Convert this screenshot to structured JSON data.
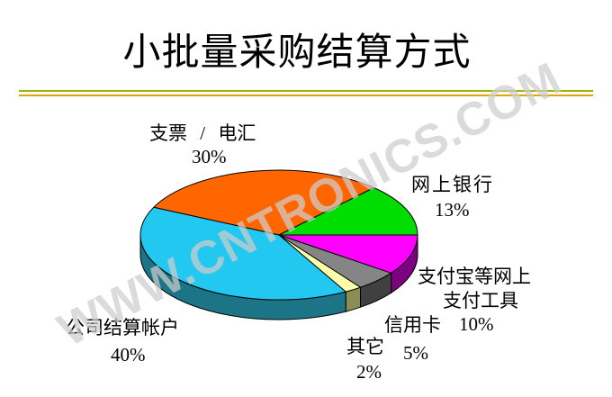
{
  "slide": {
    "title": "小批量采购结算方式"
  },
  "watermark": {
    "text": "WWW.CNTRONICS.COM",
    "color": "rgba(205,205,205,0.72)"
  },
  "divider": {
    "top_color": "#9FB300",
    "bottom_color": "#E3A400"
  },
  "chart_data": {
    "type": "pie",
    "is_3d": true,
    "title": "小批量采购结算方式",
    "legend": false,
    "units": "percent",
    "start_angle_deg": -154.8,
    "slices": [
      {
        "key": "checks",
        "name": "支票 / 电汇",
        "value": 30,
        "pct_label": "30%",
        "color": "#FF6600",
        "side_color": "#993D00"
      },
      {
        "key": "ebank",
        "name": "网上银行",
        "value": 13,
        "pct_label": "13%",
        "color": "#00DD00",
        "side_color": "#008800"
      },
      {
        "key": "alipay",
        "name": "支付宝等网上支付工具",
        "value": 10,
        "pct_label": "10%",
        "color": "#FF00FF",
        "side_color": "#7D0080"
      },
      {
        "key": "credit",
        "name": "信用卡",
        "value": 5,
        "pct_label": "5%",
        "color": "#858585",
        "side_color": "#404040"
      },
      {
        "key": "other",
        "name": "其它",
        "value": 2,
        "pct_label": "2%",
        "color": "#FFFFAA",
        "side_color": "#8C8C55"
      },
      {
        "key": "company",
        "name": "公司结算帐户",
        "value": 40,
        "pct_label": "40%",
        "color": "#22C8F0",
        "side_color": "#1B7587"
      }
    ]
  },
  "callouts": {
    "checks_name": "支票 / 电汇",
    "checks_pct": "30%",
    "ebank_name": "网上银行",
    "ebank_pct": "13%",
    "alipay_line1": "支付宝等网上",
    "alipay_line2": "支付工具",
    "alipay_pct": "10%",
    "credit_name": "信用卡",
    "credit_pct": "5%",
    "other_name": "其它",
    "other_pct": "2%",
    "company_name": "公司结算帐户",
    "company_pct": "40%"
  }
}
